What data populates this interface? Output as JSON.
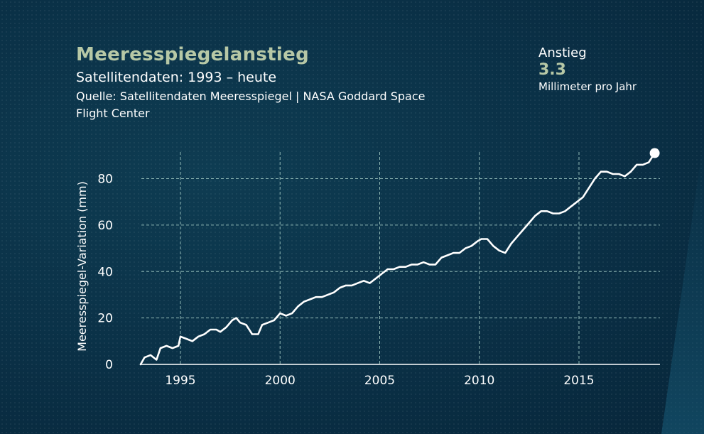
{
  "header": {
    "title": "Meeresspiegelanstieg",
    "subtitle": "Satellitendaten: 1993 – heute",
    "source": "Quelle: Satellitendaten Meeresspiegel | NASA Goddard Space Flight Center"
  },
  "stat": {
    "label": "Anstieg",
    "value": "3.3",
    "unit": "Millimeter pro Jahr"
  },
  "colors": {
    "background": "#0a3046",
    "accent": "#b7c8a6",
    "line": "#ffffff",
    "grid": "#8fb7b4"
  },
  "chart_data": {
    "type": "line",
    "title": "Meeresspiegelanstieg",
    "ylabel": "Meeresspiegel-Variation (mm)",
    "xlabel": "",
    "xlim": [
      1993,
      2019
    ],
    "ylim": [
      0,
      90
    ],
    "xticks": [
      1995,
      2000,
      2005,
      2010,
      2015
    ],
    "yticks": [
      0,
      20,
      40,
      60,
      80
    ],
    "grid": true,
    "end_marker": true,
    "series": [
      {
        "x": [
          1993.0,
          1993.2,
          1993.5,
          1993.8,
          1994.0,
          1994.3,
          1994.6,
          1994.9,
          1995.0,
          1995.3,
          1995.6,
          1995.9,
          1996.2,
          1996.5,
          1996.8,
          1997.0,
          1997.3,
          1997.6,
          1997.8,
          1998.0,
          1998.3,
          1998.6,
          1998.9,
          1999.1,
          1999.4,
          1999.7,
          2000.0,
          2000.3,
          2000.6,
          2000.9,
          2001.2,
          2001.5,
          2001.8,
          2002.1,
          2002.4,
          2002.7,
          2003.0,
          2003.3,
          2003.6,
          2003.9,
          2004.2,
          2004.5,
          2004.8,
          2005.1,
          2005.4,
          2005.7,
          2006.0,
          2006.3,
          2006.6,
          2006.9,
          2007.2,
          2007.5,
          2007.8,
          2008.1,
          2008.4,
          2008.7,
          2009.0,
          2009.3,
          2009.6,
          2009.9,
          2010.1,
          2010.4,
          2010.7,
          2011.0,
          2011.3,
          2011.6,
          2011.9,
          2012.2,
          2012.5,
          2012.8,
          2013.1,
          2013.4,
          2013.7,
          2014.0,
          2014.3,
          2014.6,
          2014.9,
          2015.2,
          2015.5,
          2015.8,
          2016.1,
          2016.4,
          2016.7,
          2017.0,
          2017.3,
          2017.6,
          2017.9,
          2018.2,
          2018.5,
          2018.8
        ],
        "y": [
          0,
          3,
          4,
          2,
          7,
          8,
          7,
          8,
          12,
          11,
          10,
          12,
          13,
          15,
          15,
          14,
          16,
          19,
          20,
          18,
          17,
          13,
          13,
          17,
          18,
          19,
          22,
          21,
          22,
          25,
          27,
          28,
          29,
          29,
          30,
          31,
          33,
          34,
          34,
          35,
          36,
          35,
          37,
          39,
          41,
          41,
          42,
          42,
          43,
          43,
          44,
          43,
          43,
          46,
          47,
          48,
          48,
          50,
          51,
          53,
          54,
          54,
          51,
          49,
          48,
          52,
          55,
          58,
          61,
          64,
          66,
          66,
          65,
          65,
          66,
          68,
          70,
          72,
          76,
          80,
          83,
          83,
          82,
          82,
          81,
          83,
          86,
          86,
          87,
          91
        ]
      }
    ]
  }
}
